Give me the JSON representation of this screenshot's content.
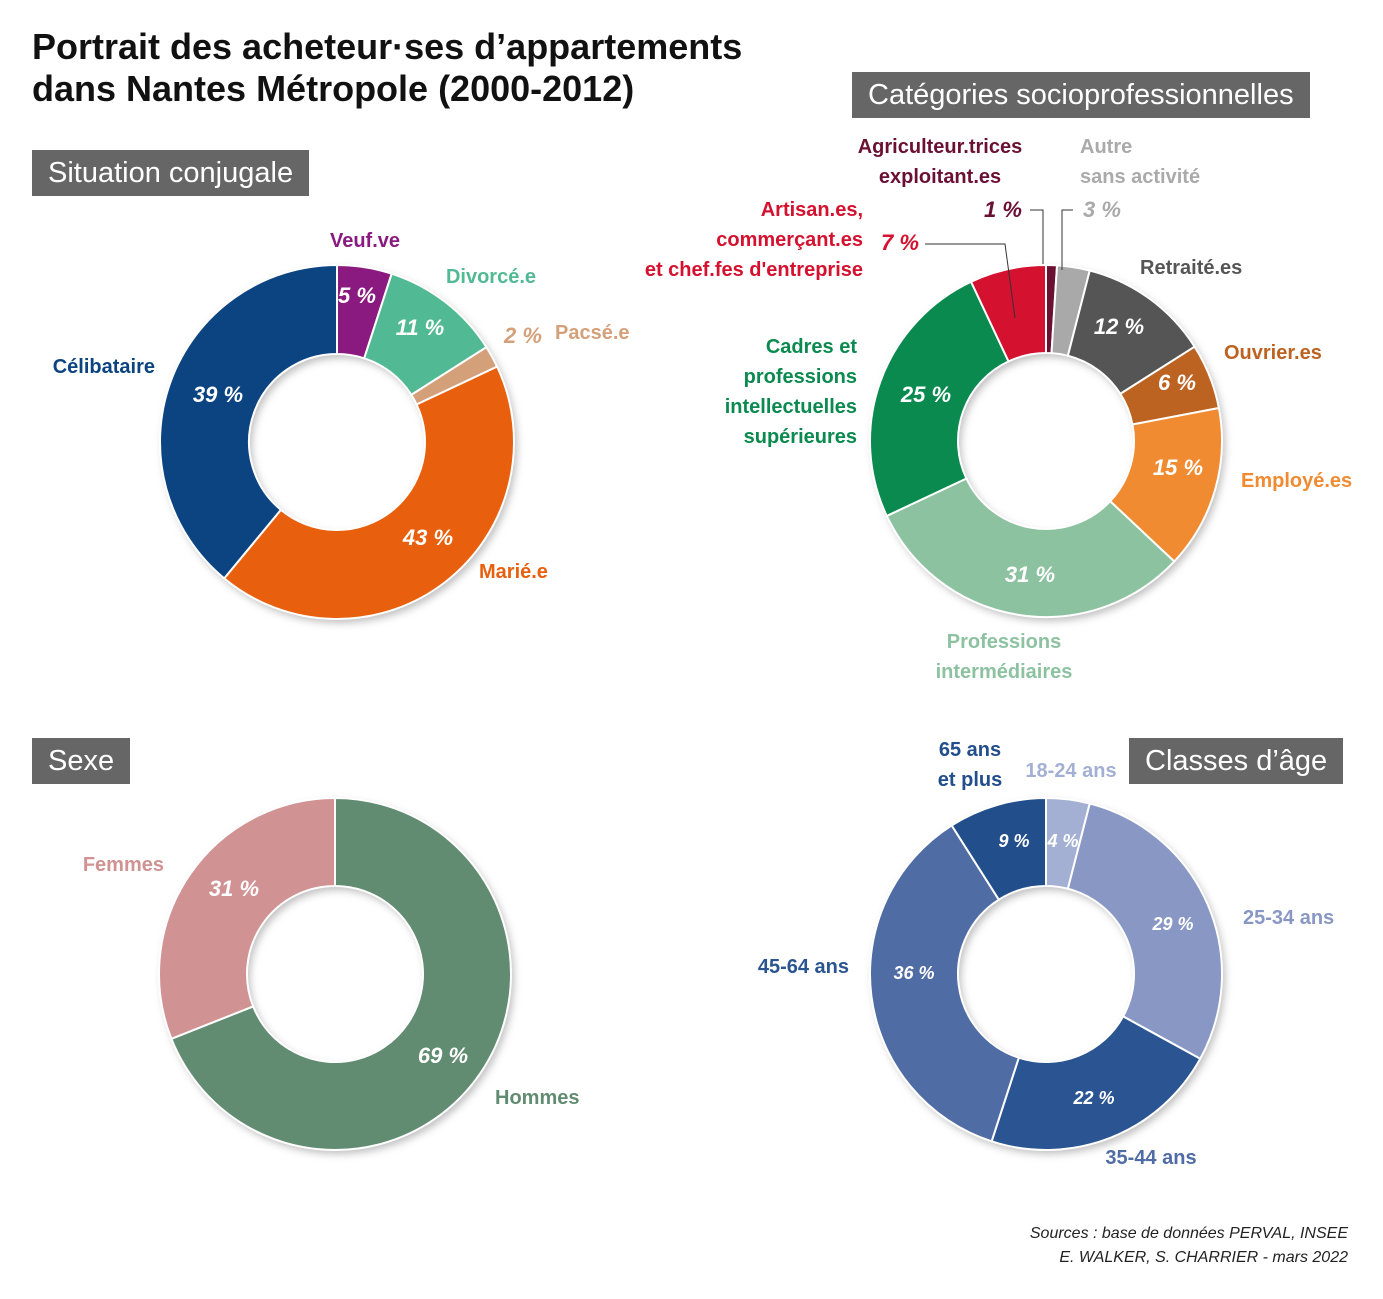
{
  "title": [
    "Portrait des acheteur·ses d’appartements",
    "dans Nantes Métropole (2000-2012)"
  ],
  "sources": [
    "Sources : base de données PERVAL, INSEE",
    "E. WALKER, S. CHARRIER - mars 2022"
  ],
  "chart_data": [
    {
      "type": "pie",
      "title": "Situation conjugale",
      "categories": [
        "Veuf.ve",
        "Divorcé.e",
        "Pacsé.e",
        "Marié.e",
        "Célibataire"
      ],
      "values": [
        5,
        11,
        2,
        43,
        39
      ],
      "value_labels": [
        "5 %",
        "11 %",
        "2 %",
        "43 %",
        "39 %"
      ],
      "colors": [
        "#8b1a80",
        "#52b995",
        "#d4a07a",
        "#e8600d",
        "#0c4482"
      ]
    },
    {
      "type": "pie",
      "title": "Catégories socioprofessionnelles",
      "categories": [
        "Agriculteur.trices exploitant.es",
        "Autre sans activité",
        "Retraité.es",
        "Ouvrier.es",
        "Employé.es",
        "Professions intermédiaires",
        "Cadres et professions intellectuelles supérieures",
        "Artisan.es, commerçant.es et chef.fes d'entreprise"
      ],
      "label_lines": [
        [
          "Agriculteur.trices",
          "exploitant.es"
        ],
        [
          "Autre",
          "sans activité"
        ],
        [
          "Retraité.es"
        ],
        [
          "Ouvrier.es"
        ],
        [
          "Employé.es"
        ],
        [
          "Professions",
          "intermédiaires"
        ],
        [
          "Cadres et",
          "professions",
          "intellectuelles",
          "supérieures"
        ],
        [
          "Artisan.es,",
          "commerçant.es",
          "et chef.fes d'entreprise"
        ]
      ],
      "values": [
        1,
        3,
        12,
        6,
        15,
        31,
        25,
        7
      ],
      "value_labels": [
        "1 %",
        "3 %",
        "12 %",
        "6 %",
        "15 %",
        "31 %",
        "25 %",
        "7 %"
      ],
      "colors": [
        "#6a1030",
        "#a9a9a9",
        "#555555",
        "#bd6322",
        "#f08b32",
        "#8dc2a0",
        "#0b8a4f",
        "#d4112f"
      ],
      "label_colors": [
        "#6a1030",
        "#aaaaaa",
        "#555555",
        "#bd6322",
        "#f08b32",
        "#8dc2a0",
        "#0b8a4f",
        "#d4112f"
      ]
    },
    {
      "type": "pie",
      "title": "Sexe",
      "categories": [
        "Hommes",
        "Femmes"
      ],
      "values": [
        69,
        31
      ],
      "value_labels": [
        "69 %",
        "31 %"
      ],
      "colors": [
        "#628c72",
        "#d09292"
      ]
    },
    {
      "type": "pie",
      "title": "Classes d’âge",
      "categories": [
        "18-24 ans",
        "25-34 ans",
        "35-44 ans",
        "45-64 ans",
        "65 ans et plus"
      ],
      "label_lines": [
        [
          "18-24 ans"
        ],
        [
          "25-34 ans"
        ],
        [
          "35-44 ans"
        ],
        [
          "45-64 ans"
        ],
        [
          "65 ans",
          "et plus"
        ]
      ],
      "values": [
        4,
        29,
        22,
        36,
        9
      ],
      "value_labels": [
        "4 %",
        "29 %",
        "22 %",
        "36 %",
        "9 %"
      ],
      "colors": [
        "#a3b0d3",
        "#8897c4",
        "#2b5592",
        "#506ca4",
        "#234e8c"
      ],
      "label_colors": [
        "#a3b0d3",
        "#8897c4",
        "#506ca4",
        "#2b5592",
        "#234e8c"
      ]
    }
  ]
}
